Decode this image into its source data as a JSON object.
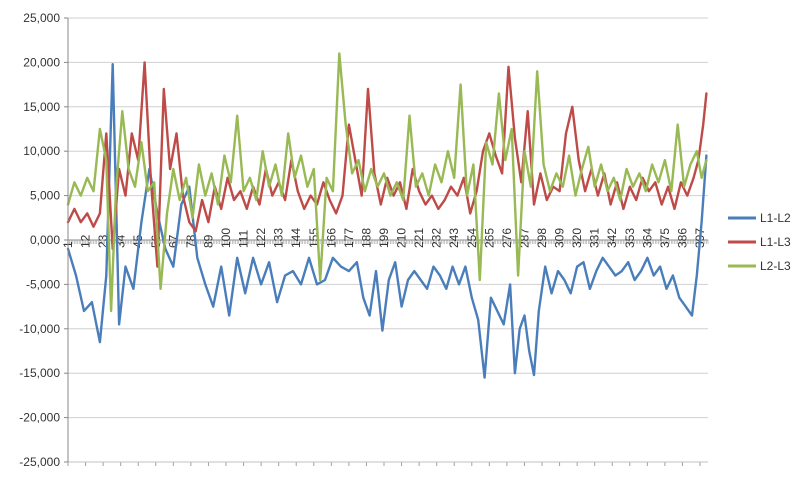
{
  "chart_data": {
    "type": "line",
    "x_ticks": [
      "1",
      "12",
      "23",
      "34",
      "45",
      "56",
      "67",
      "78",
      "89",
      "100",
      "111",
      "122",
      "133",
      "144",
      "155",
      "166",
      "177",
      "188",
      "199",
      "210",
      "221",
      "232",
      "243",
      "254",
      "265",
      "276",
      "287",
      "298",
      "309",
      "320",
      "331",
      "342",
      "353",
      "364",
      "375",
      "386",
      "397"
    ],
    "x_range": [
      1,
      402
    ],
    "ylim": [
      -25000,
      25000
    ],
    "y_ticks": [
      -25000,
      -20000,
      -15000,
      -10000,
      -5000,
      0,
      5000,
      10000,
      15000,
      20000,
      25000
    ],
    "y_tick_labels": [
      "-25,000",
      "-20,000",
      "-15,000",
      "-10,000",
      "-5,000",
      "0,000",
      "5,000",
      "10,000",
      "15,000",
      "20,000",
      "25,000"
    ],
    "grid": true,
    "legend_position": "right",
    "series": [
      {
        "name": "L1-L2",
        "color": "#4a7ebb",
        "points": [
          [
            1,
            -1000
          ],
          [
            6,
            -4000
          ],
          [
            11,
            -8000
          ],
          [
            16,
            -7000
          ],
          [
            21,
            -11500
          ],
          [
            25,
            -4000
          ],
          [
            29,
            19800
          ],
          [
            33,
            -9500
          ],
          [
            37,
            -3000
          ],
          [
            42,
            -5500
          ],
          [
            47,
            2000
          ],
          [
            52,
            8000
          ],
          [
            57,
            3000
          ],
          [
            62,
            -1000
          ],
          [
            67,
            -3000
          ],
          [
            72,
            4000
          ],
          [
            77,
            6000
          ],
          [
            82,
            -2000
          ],
          [
            87,
            -5000
          ],
          [
            92,
            -7500
          ],
          [
            97,
            -3000
          ],
          [
            102,
            -8500
          ],
          [
            107,
            -2000
          ],
          [
            112,
            -6000
          ],
          [
            117,
            -2000
          ],
          [
            122,
            -5000
          ],
          [
            127,
            -2500
          ],
          [
            132,
            -7000
          ],
          [
            137,
            -4000
          ],
          [
            142,
            -3500
          ],
          [
            147,
            -5000
          ],
          [
            152,
            -2000
          ],
          [
            157,
            -5000
          ],
          [
            162,
            -4500
          ],
          [
            167,
            -2000
          ],
          [
            172,
            -3000
          ],
          [
            177,
            -3500
          ],
          [
            182,
            -2500
          ],
          [
            186,
            -6500
          ],
          [
            190,
            -8500
          ],
          [
            194,
            -3500
          ],
          [
            198,
            -10200
          ],
          [
            202,
            -4500
          ],
          [
            206,
            -2500
          ],
          [
            210,
            -7500
          ],
          [
            214,
            -4500
          ],
          [
            218,
            -3500
          ],
          [
            222,
            -4500
          ],
          [
            226,
            -5500
          ],
          [
            230,
            -3000
          ],
          [
            234,
            -4000
          ],
          [
            238,
            -5500
          ],
          [
            242,
            -3000
          ],
          [
            246,
            -5000
          ],
          [
            250,
            -3000
          ],
          [
            254,
            -6500
          ],
          [
            258,
            -9000
          ],
          [
            262,
            -15500
          ],
          [
            266,
            -6500
          ],
          [
            270,
            -8000
          ],
          [
            274,
            -9500
          ],
          [
            278,
            -5000
          ],
          [
            281,
            -15000
          ],
          [
            284,
            -10000
          ],
          [
            287,
            -8500
          ],
          [
            290,
            -12500
          ],
          [
            293,
            -15200
          ],
          [
            296,
            -8000
          ],
          [
            300,
            -3000
          ],
          [
            304,
            -6000
          ],
          [
            308,
            -3500
          ],
          [
            312,
            -4500
          ],
          [
            316,
            -6000
          ],
          [
            320,
            -3000
          ],
          [
            324,
            -2500
          ],
          [
            328,
            -5500
          ],
          [
            332,
            -3500
          ],
          [
            336,
            -2000
          ],
          [
            340,
            -3000
          ],
          [
            344,
            -4000
          ],
          [
            348,
            -3500
          ],
          [
            352,
            -2500
          ],
          [
            356,
            -4500
          ],
          [
            360,
            -3500
          ],
          [
            364,
            -2000
          ],
          [
            368,
            -4000
          ],
          [
            372,
            -3000
          ],
          [
            376,
            -5500
          ],
          [
            380,
            -4000
          ],
          [
            384,
            -6500
          ],
          [
            388,
            -7500
          ],
          [
            392,
            -8500
          ],
          [
            395,
            -4000
          ],
          [
            398,
            2000
          ],
          [
            401,
            9500
          ]
        ]
      },
      {
        "name": "L1-L3",
        "color": "#be4b48",
        "points": [
          [
            1,
            2000
          ],
          [
            5,
            3500
          ],
          [
            9,
            2000
          ],
          [
            13,
            3000
          ],
          [
            17,
            1500
          ],
          [
            21,
            3000
          ],
          [
            25,
            12000
          ],
          [
            29,
            -1000
          ],
          [
            33,
            8000
          ],
          [
            37,
            5000
          ],
          [
            41,
            12000
          ],
          [
            45,
            9000
          ],
          [
            49,
            20000
          ],
          [
            53,
            6500
          ],
          [
            57,
            -3000
          ],
          [
            61,
            17000
          ],
          [
            65,
            8000
          ],
          [
            69,
            12000
          ],
          [
            73,
            5000
          ],
          [
            77,
            2000
          ],
          [
            81,
            1000
          ],
          [
            85,
            4500
          ],
          [
            89,
            2000
          ],
          [
            93,
            6000
          ],
          [
            97,
            3500
          ],
          [
            101,
            7000
          ],
          [
            105,
            4500
          ],
          [
            109,
            5500
          ],
          [
            113,
            3500
          ],
          [
            117,
            6000
          ],
          [
            121,
            4000
          ],
          [
            125,
            8000
          ],
          [
            129,
            5000
          ],
          [
            133,
            6500
          ],
          [
            137,
            4500
          ],
          [
            141,
            9000
          ],
          [
            145,
            5500
          ],
          [
            149,
            3500
          ],
          [
            153,
            5000
          ],
          [
            157,
            4000
          ],
          [
            161,
            6500
          ],
          [
            165,
            4500
          ],
          [
            169,
            3000
          ],
          [
            173,
            5000
          ],
          [
            177,
            13000
          ],
          [
            181,
            9000
          ],
          [
            185,
            5000
          ],
          [
            189,
            17000
          ],
          [
            193,
            7500
          ],
          [
            197,
            4000
          ],
          [
            201,
            7000
          ],
          [
            205,
            5000
          ],
          [
            209,
            6500
          ],
          [
            213,
            3500
          ],
          [
            217,
            8000
          ],
          [
            221,
            5500
          ],
          [
            225,
            4000
          ],
          [
            229,
            5000
          ],
          [
            233,
            3500
          ],
          [
            237,
            4500
          ],
          [
            241,
            6000
          ],
          [
            245,
            5000
          ],
          [
            249,
            7000
          ],
          [
            253,
            3000
          ],
          [
            257,
            5500
          ],
          [
            261,
            10000
          ],
          [
            265,
            12000
          ],
          [
            269,
            9500
          ],
          [
            273,
            7500
          ],
          [
            277,
            19500
          ],
          [
            281,
            11500
          ],
          [
            285,
            6500
          ],
          [
            289,
            14500
          ],
          [
            293,
            4000
          ],
          [
            297,
            7500
          ],
          [
            301,
            4500
          ],
          [
            305,
            6000
          ],
          [
            309,
            5500
          ],
          [
            313,
            12000
          ],
          [
            317,
            15000
          ],
          [
            321,
            9000
          ],
          [
            325,
            5500
          ],
          [
            329,
            8000
          ],
          [
            333,
            5000
          ],
          [
            337,
            7500
          ],
          [
            341,
            4000
          ],
          [
            345,
            6500
          ],
          [
            349,
            3500
          ],
          [
            353,
            6000
          ],
          [
            357,
            4500
          ],
          [
            361,
            7000
          ],
          [
            365,
            5500
          ],
          [
            369,
            6500
          ],
          [
            373,
            4000
          ],
          [
            377,
            6000
          ],
          [
            381,
            3500
          ],
          [
            385,
            6500
          ],
          [
            389,
            5000
          ],
          [
            393,
            7000
          ],
          [
            396,
            9000
          ],
          [
            399,
            13000
          ],
          [
            401,
            16500
          ]
        ]
      },
      {
        "name": "L2-L3",
        "color": "#98b954",
        "points": [
          [
            1,
            4000
          ],
          [
            5,
            6500
          ],
          [
            9,
            5000
          ],
          [
            13,
            7000
          ],
          [
            17,
            5500
          ],
          [
            21,
            12500
          ],
          [
            25,
            9000
          ],
          [
            28,
            -8000
          ],
          [
            31,
            5500
          ],
          [
            35,
            14500
          ],
          [
            39,
            8000
          ],
          [
            43,
            6000
          ],
          [
            47,
            11000
          ],
          [
            51,
            5500
          ],
          [
            55,
            6500
          ],
          [
            59,
            -5500
          ],
          [
            63,
            3000
          ],
          [
            67,
            8000
          ],
          [
            71,
            4500
          ],
          [
            75,
            7000
          ],
          [
            79,
            2500
          ],
          [
            83,
            8500
          ],
          [
            87,
            5000
          ],
          [
            91,
            7500
          ],
          [
            95,
            4000
          ],
          [
            99,
            9500
          ],
          [
            103,
            6500
          ],
          [
            107,
            14000
          ],
          [
            111,
            5500
          ],
          [
            115,
            7000
          ],
          [
            119,
            4500
          ],
          [
            123,
            10000
          ],
          [
            127,
            6000
          ],
          [
            131,
            8500
          ],
          [
            135,
            5000
          ],
          [
            139,
            12000
          ],
          [
            143,
            7000
          ],
          [
            147,
            9500
          ],
          [
            151,
            6000
          ],
          [
            155,
            8000
          ],
          [
            159,
            -4500
          ],
          [
            163,
            7000
          ],
          [
            167,
            5500
          ],
          [
            171,
            21000
          ],
          [
            175,
            13000
          ],
          [
            179,
            7500
          ],
          [
            183,
            9000
          ],
          [
            187,
            5500
          ],
          [
            191,
            8000
          ],
          [
            195,
            6000
          ],
          [
            199,
            7500
          ],
          [
            203,
            5000
          ],
          [
            207,
            6500
          ],
          [
            211,
            4500
          ],
          [
            215,
            14000
          ],
          [
            219,
            6000
          ],
          [
            223,
            7500
          ],
          [
            227,
            5000
          ],
          [
            231,
            8500
          ],
          [
            235,
            6500
          ],
          [
            239,
            10000
          ],
          [
            243,
            7000
          ],
          [
            247,
            17500
          ],
          [
            251,
            5000
          ],
          [
            255,
            8500
          ],
          [
            259,
            -4500
          ],
          [
            263,
            11000
          ],
          [
            267,
            8500
          ],
          [
            271,
            16500
          ],
          [
            275,
            9000
          ],
          [
            279,
            12500
          ],
          [
            283,
            -4000
          ],
          [
            287,
            10000
          ],
          [
            291,
            6000
          ],
          [
            295,
            19000
          ],
          [
            299,
            8500
          ],
          [
            303,
            5500
          ],
          [
            307,
            7500
          ],
          [
            311,
            6000
          ],
          [
            315,
            9500
          ],
          [
            319,
            5000
          ],
          [
            323,
            8000
          ],
          [
            327,
            10500
          ],
          [
            331,
            6000
          ],
          [
            335,
            8500
          ],
          [
            339,
            5500
          ],
          [
            343,
            7000
          ],
          [
            347,
            4500
          ],
          [
            351,
            8000
          ],
          [
            355,
            6000
          ],
          [
            359,
            7500
          ],
          [
            363,
            5500
          ],
          [
            367,
            8500
          ],
          [
            371,
            6500
          ],
          [
            375,
            9000
          ],
          [
            379,
            5500
          ],
          [
            383,
            13000
          ],
          [
            387,
            6000
          ],
          [
            391,
            8500
          ],
          [
            395,
            10000
          ],
          [
            398,
            7000
          ],
          [
            401,
            9000
          ]
        ]
      }
    ]
  }
}
